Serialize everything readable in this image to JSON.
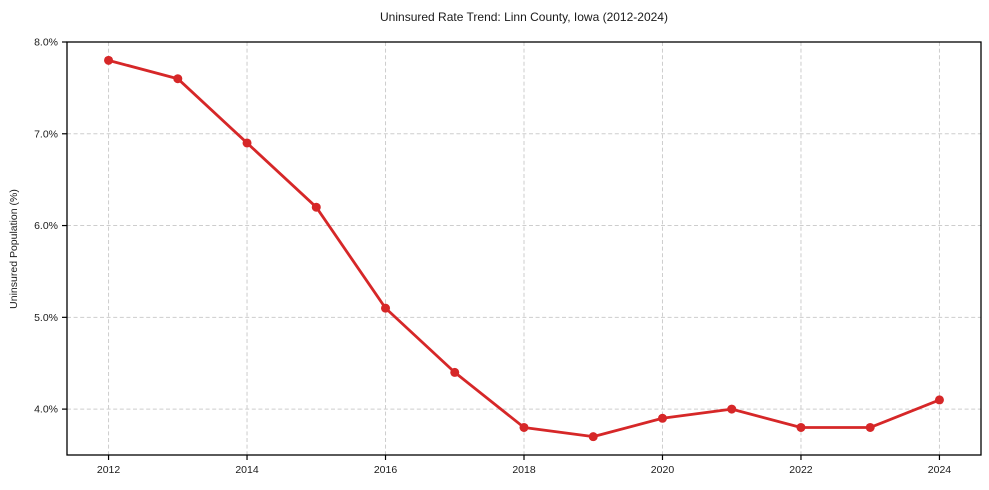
{
  "chart_data": {
    "type": "line",
    "title": "Uninsured Rate Trend: Linn County, Iowa (2012-2024)",
    "xlabel": "",
    "ylabel": "Uninsured Population (%)",
    "series": [
      {
        "name": "Uninsured rate",
        "x": [
          2012,
          2013,
          2014,
          2015,
          2016,
          2017,
          2018,
          2019,
          2020,
          2021,
          2022,
          2023,
          2024
        ],
        "values": [
          7.8,
          7.6,
          6.9,
          6.2,
          5.1,
          4.4,
          3.8,
          3.7,
          3.9,
          4.0,
          3.8,
          3.8,
          4.1
        ]
      }
    ],
    "xlim": [
      2011.4,
      2024.6
    ],
    "ylim": [
      3.5,
      8.0
    ],
    "xticks": [
      2012,
      2014,
      2016,
      2018,
      2020,
      2022,
      2024
    ],
    "yticks": [
      4.0,
      5.0,
      6.0,
      7.0,
      8.0
    ],
    "ytick_suffix": "%",
    "grid": true,
    "grid_style": "dashed",
    "legend": "none",
    "colors": {
      "line": "#d62728",
      "grid": "#cdcdcd",
      "frame": "#000000",
      "text": "#1a1a1a",
      "background": "#ffffff"
    }
  }
}
